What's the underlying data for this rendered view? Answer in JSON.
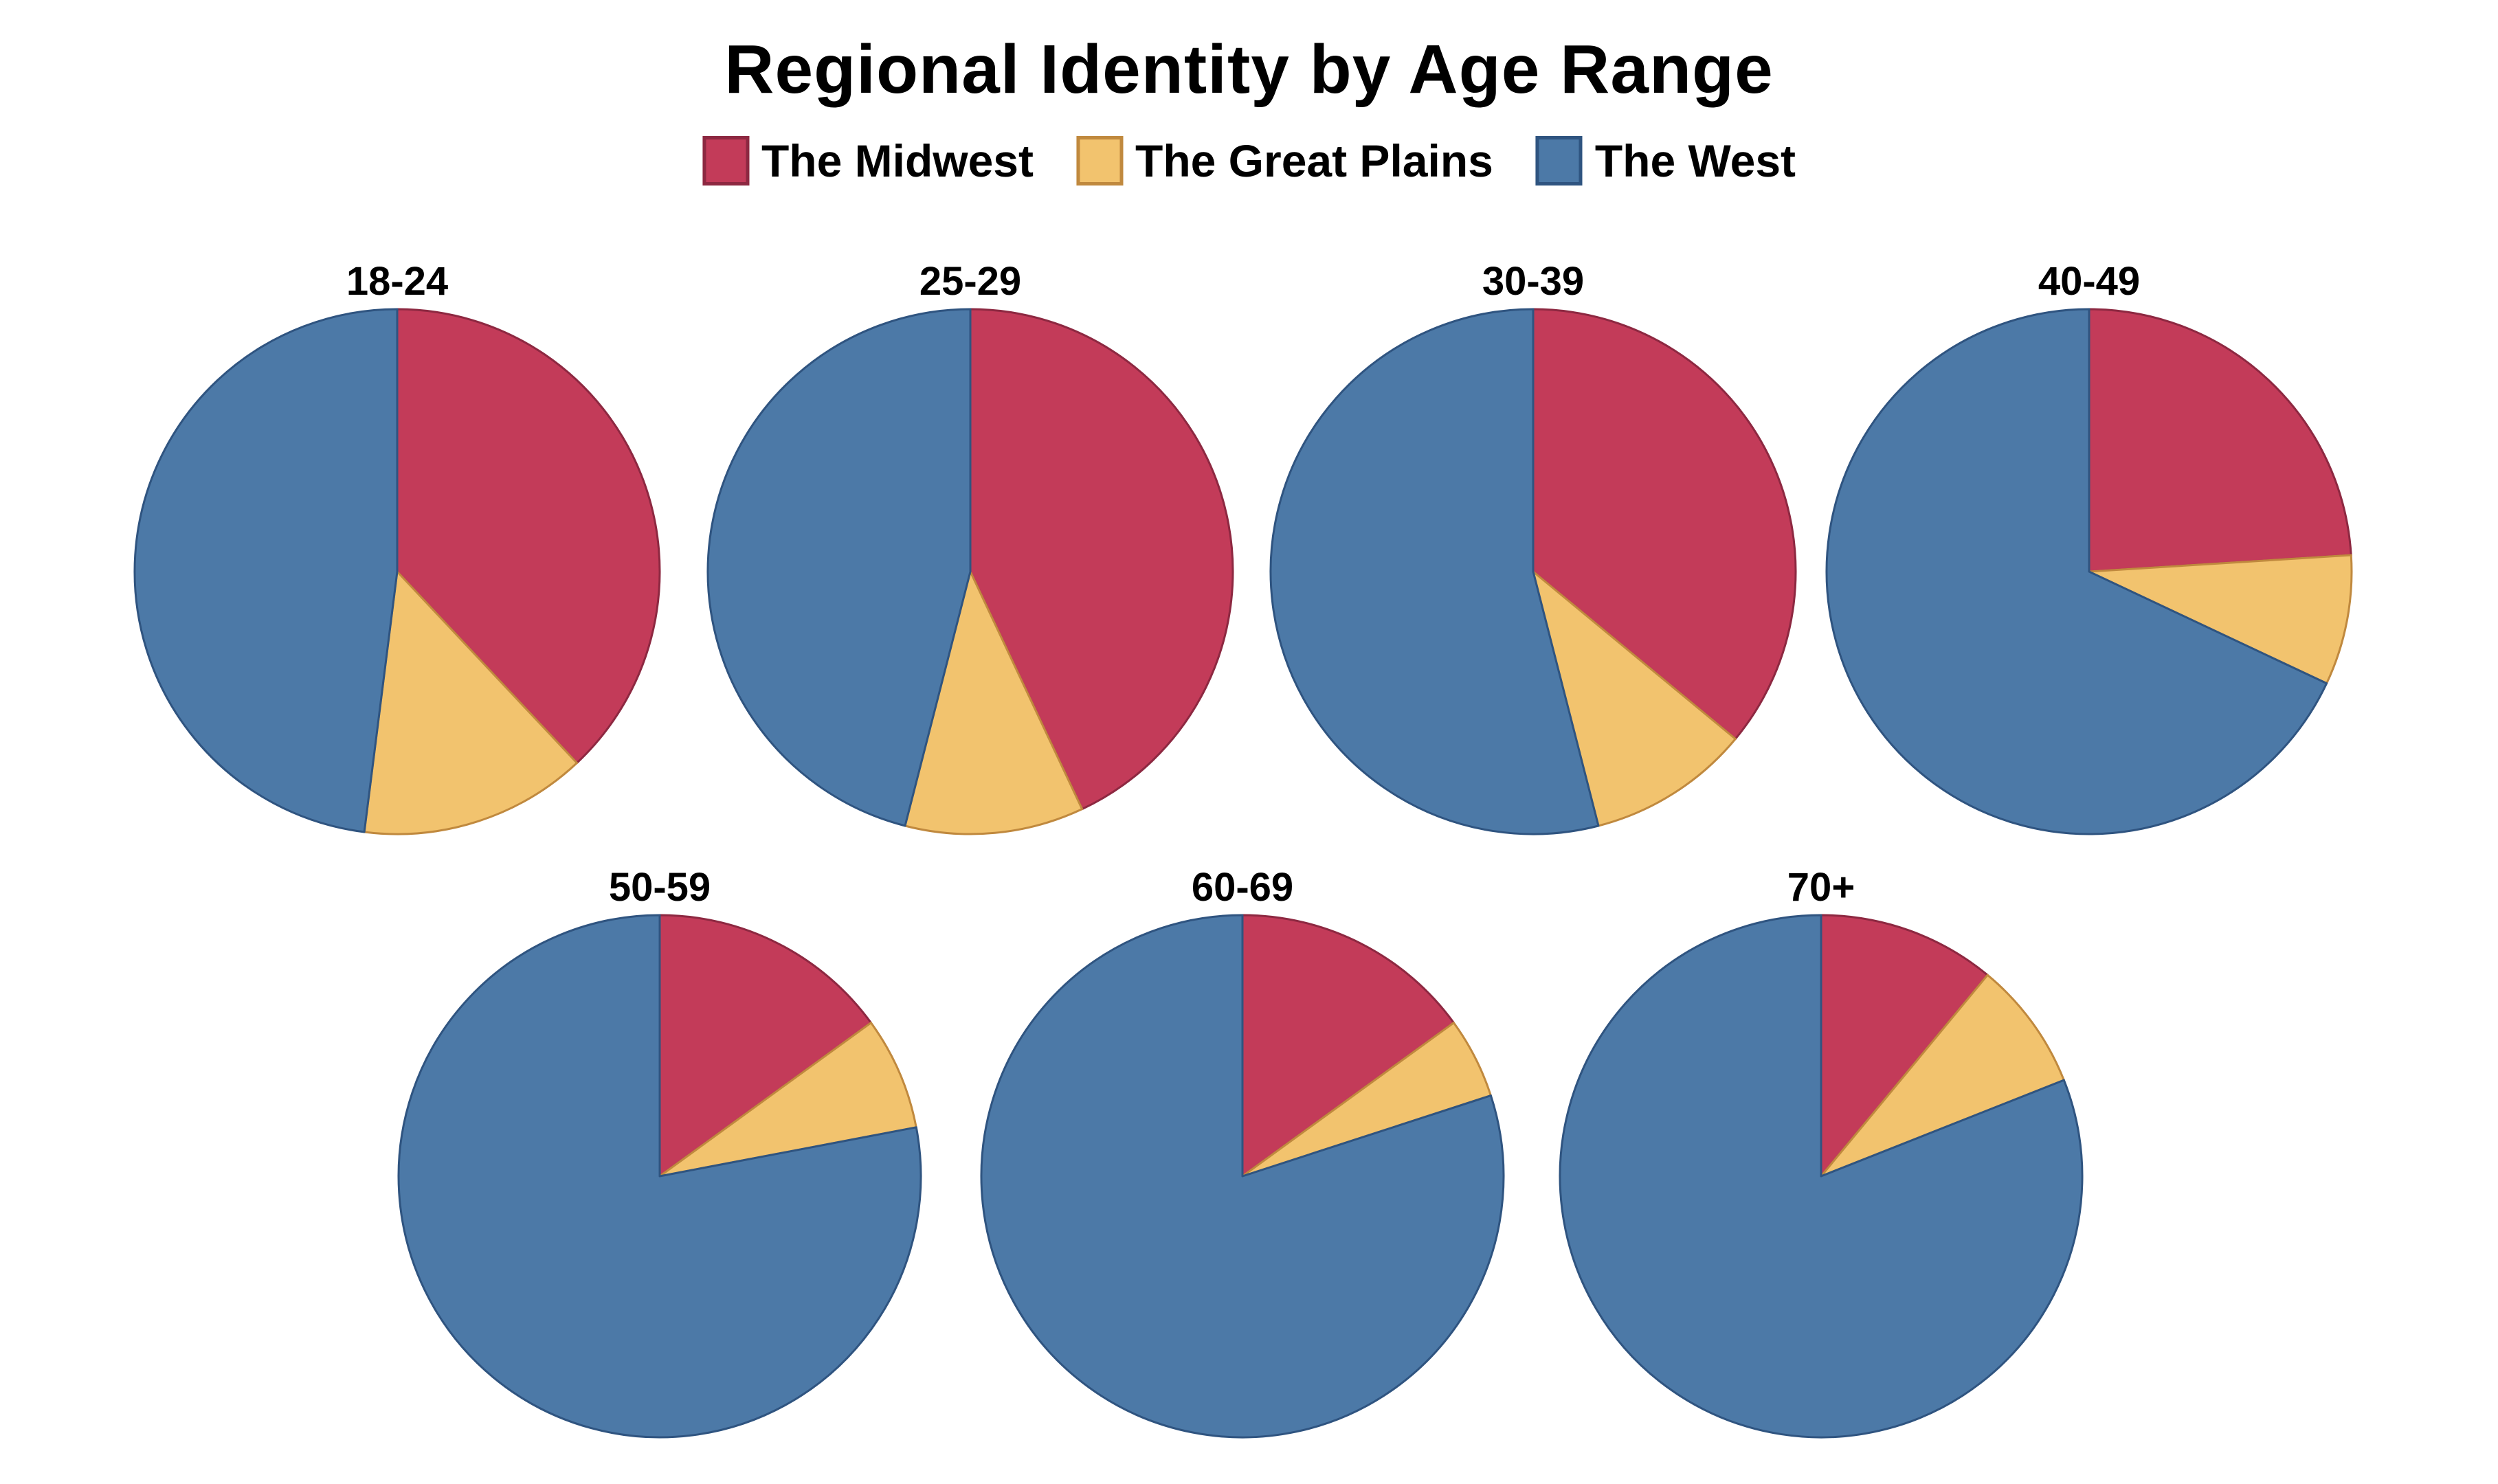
{
  "title": "Regional Identity by Age Range",
  "chart_data": {
    "type": "pie",
    "title": "Regional Identity by Age Range",
    "legend_position": "top",
    "background": "#ffffff",
    "unit": "percent",
    "slice_start": "top",
    "slice_direction": "clockwise",
    "series": [
      {
        "name": "The Midwest",
        "color": "#C33B59",
        "border": "#8D2841"
      },
      {
        "name": "The Great Plains",
        "color": "#F2C36E",
        "border": "#C0893E"
      },
      {
        "name": "The West",
        "color": "#4C79A7",
        "border": "#2F5480"
      }
    ],
    "pies": [
      {
        "label": "18-24",
        "values": [
          38,
          14,
          48
        ]
      },
      {
        "label": "25-29",
        "values": [
          43,
          11,
          46
        ]
      },
      {
        "label": "30-39",
        "values": [
          36,
          10,
          54
        ]
      },
      {
        "label": "40-49",
        "values": [
          24,
          8,
          68
        ]
      },
      {
        "label": "50-59",
        "values": [
          15,
          7,
          78
        ]
      },
      {
        "label": "60-69",
        "values": [
          15,
          5,
          80
        ]
      },
      {
        "label": "70+",
        "values": [
          11,
          8,
          81
        ]
      }
    ]
  }
}
